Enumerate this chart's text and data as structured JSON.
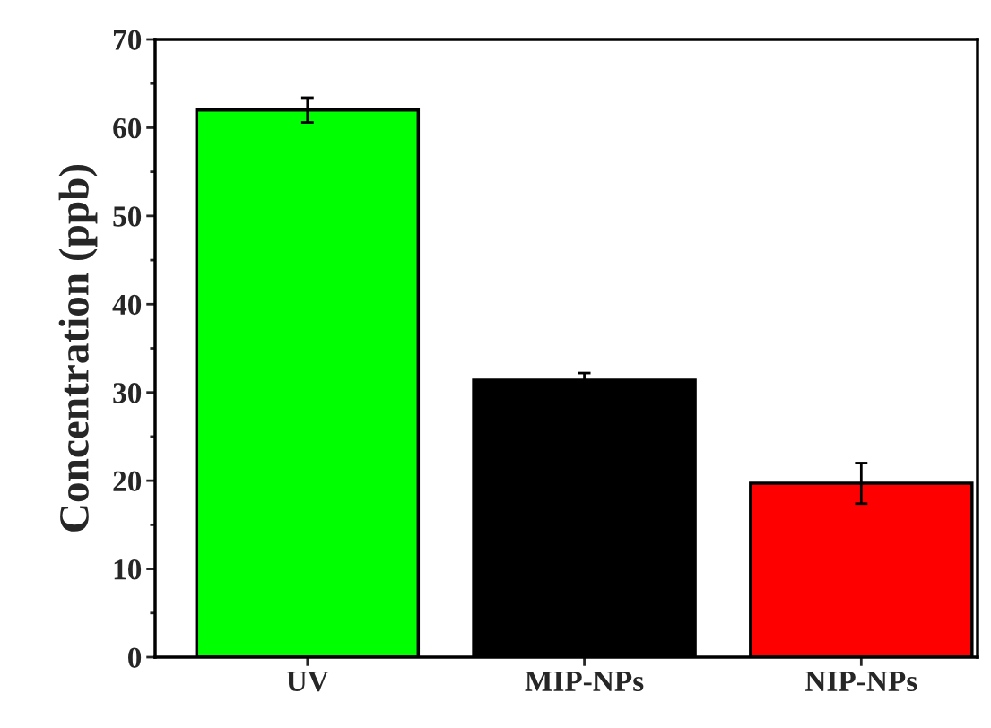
{
  "chart_data": {
    "type": "bar",
    "ylabel": "Concentration (ppb)",
    "categories": [
      "UV",
      "MIP-NPs",
      "NIP-NPs"
    ],
    "values": [
      62.0,
      31.4,
      19.7
    ],
    "errors": [
      1.4,
      0.8,
      2.3
    ],
    "colors": [
      "#00ff00",
      "#000000",
      "#ff0000"
    ],
    "ylim": [
      0,
      70
    ],
    "yticks": [
      0,
      10,
      20,
      30,
      40,
      50,
      60,
      70
    ],
    "grid": false
  }
}
